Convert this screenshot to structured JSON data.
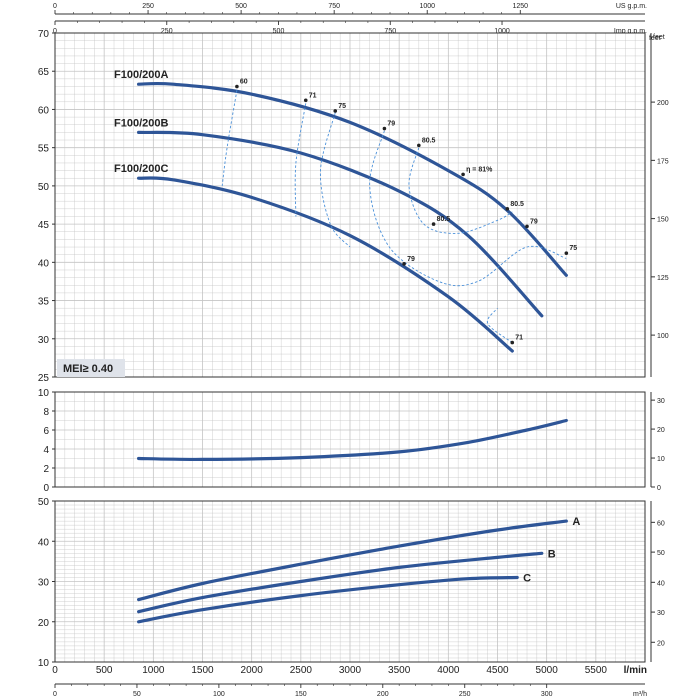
{
  "chart_data": [
    {
      "type": "line",
      "panel": "head",
      "ylim": [
        25,
        70
      ],
      "yticks": [
        "25",
        "30",
        "35",
        "40",
        "45",
        "50",
        "55",
        "60",
        "65",
        "70"
      ],
      "right_axis": {
        "unit": "feet",
        "ticks": [
          "100",
          "125",
          "150",
          "175",
          "200"
        ],
        "values_m": [
          30.48,
          38.1,
          45.72,
          53.34,
          60.96
        ]
      },
      "series": [
        {
          "name": "F100/200A",
          "x": [
            850,
            1200,
            2000,
            3000,
            4000,
            4600,
            5200
          ],
          "y": [
            63.3,
            63.3,
            62.0,
            58.3,
            52.0,
            46.8,
            38.3
          ]
        },
        {
          "name": "F100/200B",
          "x": [
            850,
            1500,
            2500,
            3500,
            4200,
            4950
          ],
          "y": [
            57.0,
            56.7,
            54.3,
            49.3,
            43.5,
            33.0
          ]
        },
        {
          "name": "F100/200C",
          "x": [
            850,
            1200,
            2000,
            3000,
            4000,
            4650
          ],
          "y": [
            51.0,
            50.8,
            48.5,
            43.5,
            35.5,
            28.4
          ]
        }
      ],
      "efficiency_labels": [
        {
          "text": "60",
          "x": 1850,
          "y": 63.0
        },
        {
          "text": "71",
          "x": 2550,
          "y": 61.2
        },
        {
          "text": "75",
          "x": 2850,
          "y": 59.8
        },
        {
          "text": "79",
          "x": 3350,
          "y": 57.5
        },
        {
          "text": "80.5",
          "x": 3700,
          "y": 55.3
        },
        {
          "text": "η = 81%",
          "x": 4150,
          "y": 51.5
        },
        {
          "text": "80.5",
          "x": 4600,
          "y": 47.0
        },
        {
          "text": "79",
          "x": 4800,
          "y": 44.7
        },
        {
          "text": "75",
          "x": 5200,
          "y": 41.2
        },
        {
          "text": "80.5",
          "x": 3850,
          "y": 45.0
        },
        {
          "text": "79",
          "x": 3550,
          "y": 39.8
        },
        {
          "text": "71",
          "x": 4650,
          "y": 29.5
        }
      ],
      "mei_label": "MEI≥ 0.40"
    },
    {
      "type": "line",
      "panel": "npsh",
      "ylim": [
        0,
        10
      ],
      "yticks": [
        "0",
        "2",
        "4",
        "6",
        "8",
        "10"
      ],
      "right_axis": {
        "unit": "",
        "ticks": [
          "0",
          "10",
          "20",
          "30"
        ],
        "values_m": [
          0,
          3.048,
          6.096,
          9.144
        ]
      },
      "series": [
        {
          "x": [
            850,
            1500,
            2500,
            3500,
            4200,
            4800,
            5200
          ],
          "y": [
            3.0,
            2.9,
            3.1,
            3.7,
            4.7,
            6.0,
            7.0
          ]
        }
      ]
    },
    {
      "type": "line",
      "panel": "power",
      "ylim": [
        10,
        50
      ],
      "yticks": [
        "10",
        "20",
        "30",
        "40",
        "50"
      ],
      "right_axis": {
        "unit": "",
        "ticks": [
          "20",
          "30",
          "40",
          "50",
          "60"
        ],
        "values_m": [
          14.9,
          22.4,
          29.8,
          37.3,
          44.7
        ]
      },
      "series": [
        {
          "name": "A",
          "x": [
            850,
            1500,
            2500,
            3500,
            4500,
            5200
          ],
          "y": [
            25.5,
            29.5,
            34.3,
            38.8,
            42.8,
            45.0
          ]
        },
        {
          "name": "B",
          "x": [
            850,
            1500,
            2500,
            3500,
            4500,
            4950
          ],
          "y": [
            22.5,
            26.0,
            30.0,
            33.5,
            36.0,
            37.0
          ]
        },
        {
          "name": "C",
          "x": [
            850,
            1500,
            2500,
            3500,
            4200,
            4700
          ],
          "y": [
            20.0,
            23.0,
            26.5,
            29.2,
            30.7,
            31.0
          ]
        }
      ]
    }
  ],
  "axes": {
    "lmin": {
      "label": "l/min",
      "ticks": [
        "0",
        "500",
        "1000",
        "1500",
        "2000",
        "2500",
        "3000",
        "3500",
        "4000",
        "4500",
        "5000",
        "5500"
      ],
      "xlim": [
        0,
        6000
      ]
    },
    "m3h": {
      "label": "m³/h",
      "ticks": [
        "0",
        "50",
        "100",
        "150",
        "200",
        "250",
        "300"
      ],
      "values_lmin": [
        0,
        833.3,
        1666.7,
        2500,
        3333.3,
        4166.7,
        5000
      ]
    },
    "usgpm": {
      "label": "US g.p.m.",
      "ticks": [
        "0",
        "250",
        "500",
        "750",
        "1000",
        "1250"
      ],
      "values_lmin": [
        0,
        946.4,
        1892.7,
        2839.1,
        3785.4,
        4731.8
      ]
    },
    "impgpm": {
      "label": "Imp g.p.m.",
      "ticks": [
        "0",
        "250",
        "500",
        "750",
        "1000"
      ],
      "values_lmin": [
        0,
        1136.5,
        2273,
        3409.5,
        4546
      ]
    },
    "feet": {
      "label": "feet"
    }
  },
  "colors": {
    "curve": "#2e5597",
    "grid": "#c4c4c4",
    "efficiency": "#4a90d9",
    "mei_box": "#dfe3ea"
  }
}
